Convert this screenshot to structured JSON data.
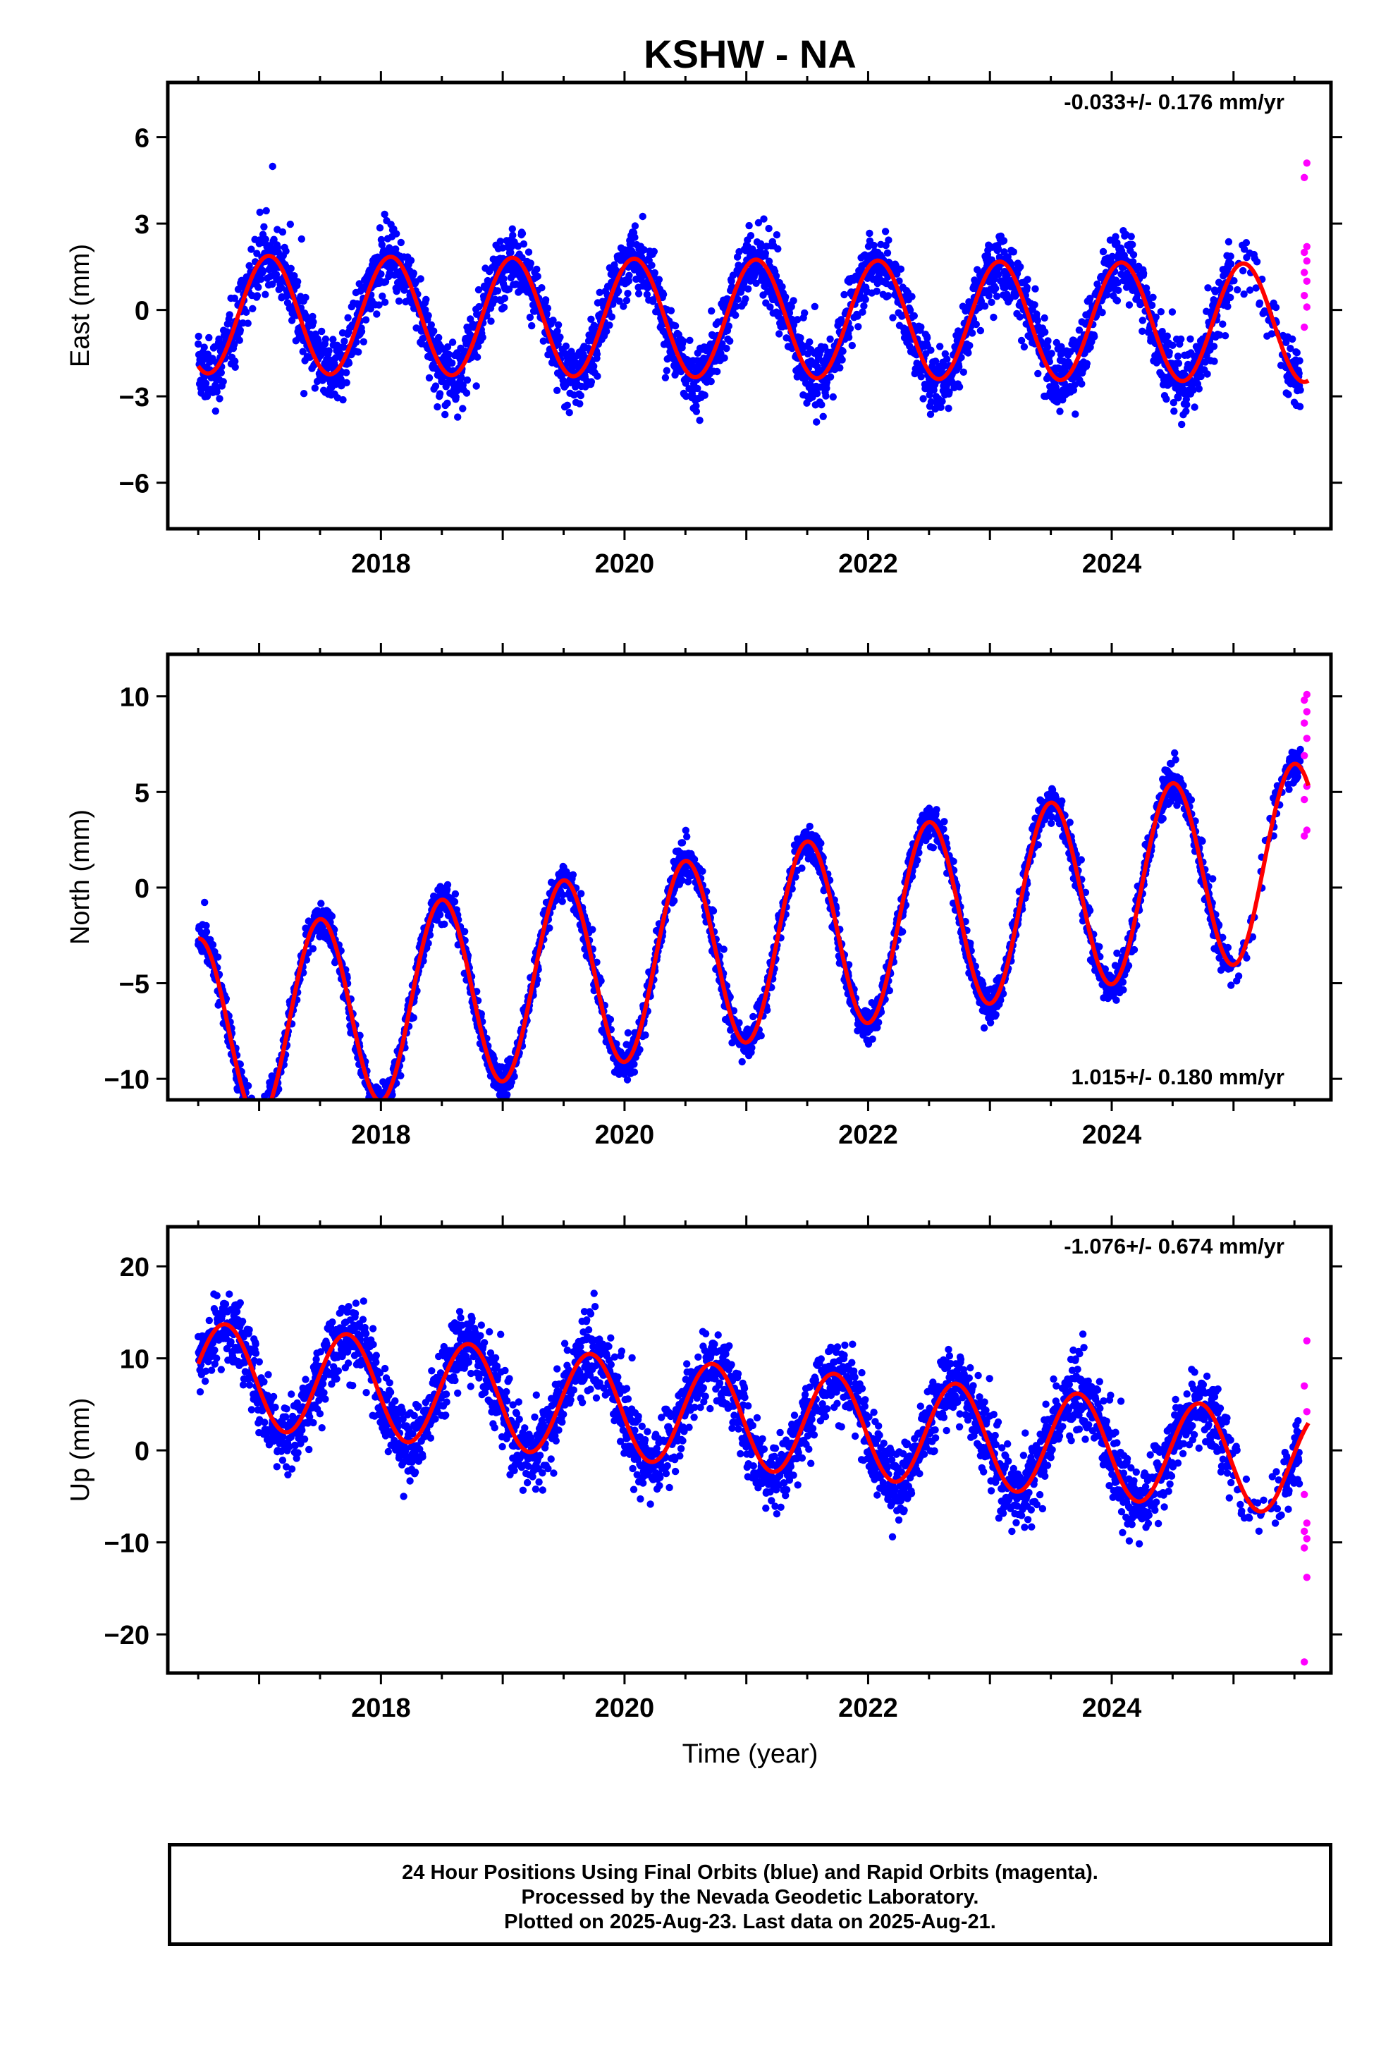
{
  "title": "KSHW - NA",
  "xlabel": "Time (year)",
  "footer": {
    "line1": "24 Hour Positions Using Final Orbits (blue) and Rapid Orbits (magenta).",
    "line2": "Processed by the Nevada Geodetic Laboratory.",
    "line3": "Plotted on 2025-Aug-23. Last data on 2025-Aug-21."
  },
  "colors": {
    "final": "#0000ff",
    "rapid": "#ff00ff",
    "model": "#ff0000",
    "axis": "#000000"
  },
  "chart_data": [
    {
      "type": "scatter",
      "component": "East",
      "ylabel": "East (mm)",
      "rate_label": "-0.033+/- 0.176 mm/yr",
      "rate_position": "top-right",
      "xlim": [
        2016.25,
        2025.8
      ],
      "ylim": [
        -7.6,
        7.9
      ],
      "yticks": [
        -6,
        -3,
        0,
        3,
        6
      ],
      "xticks": [
        2018,
        2020,
        2022,
        2024
      ],
      "model": {
        "offset": -0.3,
        "trend": -0.033,
        "amp": 2.05,
        "peak": 0.08,
        "cutoff": 2025.1
      },
      "scatter_sd": 1.15,
      "final_range": [
        2016.5,
        2025.55
      ],
      "rapid_range": [
        2025.56,
        2025.63
      ],
      "rapid_points": [
        -0.6,
        0.1,
        0.5,
        1.0,
        1.3,
        1.7,
        2.0,
        2.2,
        4.6,
        5.1
      ]
    },
    {
      "type": "scatter",
      "component": "North",
      "ylabel": "North (mm)",
      "rate_label": "1.015+/- 0.180 mm/yr",
      "rate_position": "bottom-right",
      "xlim": [
        2016.25,
        2025.8
      ],
      "ylim": [
        -11.1,
        12.2
      ],
      "yticks": [
        -10,
        -5,
        0,
        5,
        10
      ],
      "xticks": [
        2018,
        2020,
        2022,
        2024
      ],
      "model": {
        "offset": -3.1,
        "trend": 1.015,
        "amp": 5.0,
        "peak": 0.5,
        "cutoff": 2025.1
      },
      "scatter_sd": 0.95,
      "final_range": [
        2016.5,
        2025.55
      ],
      "rapid_range": [
        2025.56,
        2025.63
      ],
      "rapid_points": [
        2.7,
        3.0,
        4.6,
        5.3,
        6.9,
        7.8,
        8.6,
        9.2,
        9.8,
        10.1
      ]
    },
    {
      "type": "scatter",
      "component": "Up",
      "ylabel": "Up (mm)",
      "rate_label": "-1.076+/- 0.674 mm/yr",
      "rate_position": "top-right",
      "xlim": [
        2016.25,
        2025.8
      ],
      "ylim": [
        -24.2,
        24.3
      ],
      "yticks": [
        -20,
        -10,
        0,
        10,
        20
      ],
      "xticks": [
        2018,
        2020,
        2022,
        2024
      ],
      "model": {
        "offset": 3.5,
        "trend": -1.076,
        "amp": 5.6,
        "peak": 0.72,
        "cutoff": 2025.1
      },
      "scatter_sd": 4.0,
      "final_range": [
        2016.5,
        2025.55
      ],
      "rapid_range": [
        2025.56,
        2025.63
      ],
      "rapid_points": [
        -23.0,
        -13.8,
        -10.6,
        -9.6,
        -8.8,
        -7.9,
        -4.8,
        4.2,
        7.0,
        11.9
      ]
    }
  ]
}
